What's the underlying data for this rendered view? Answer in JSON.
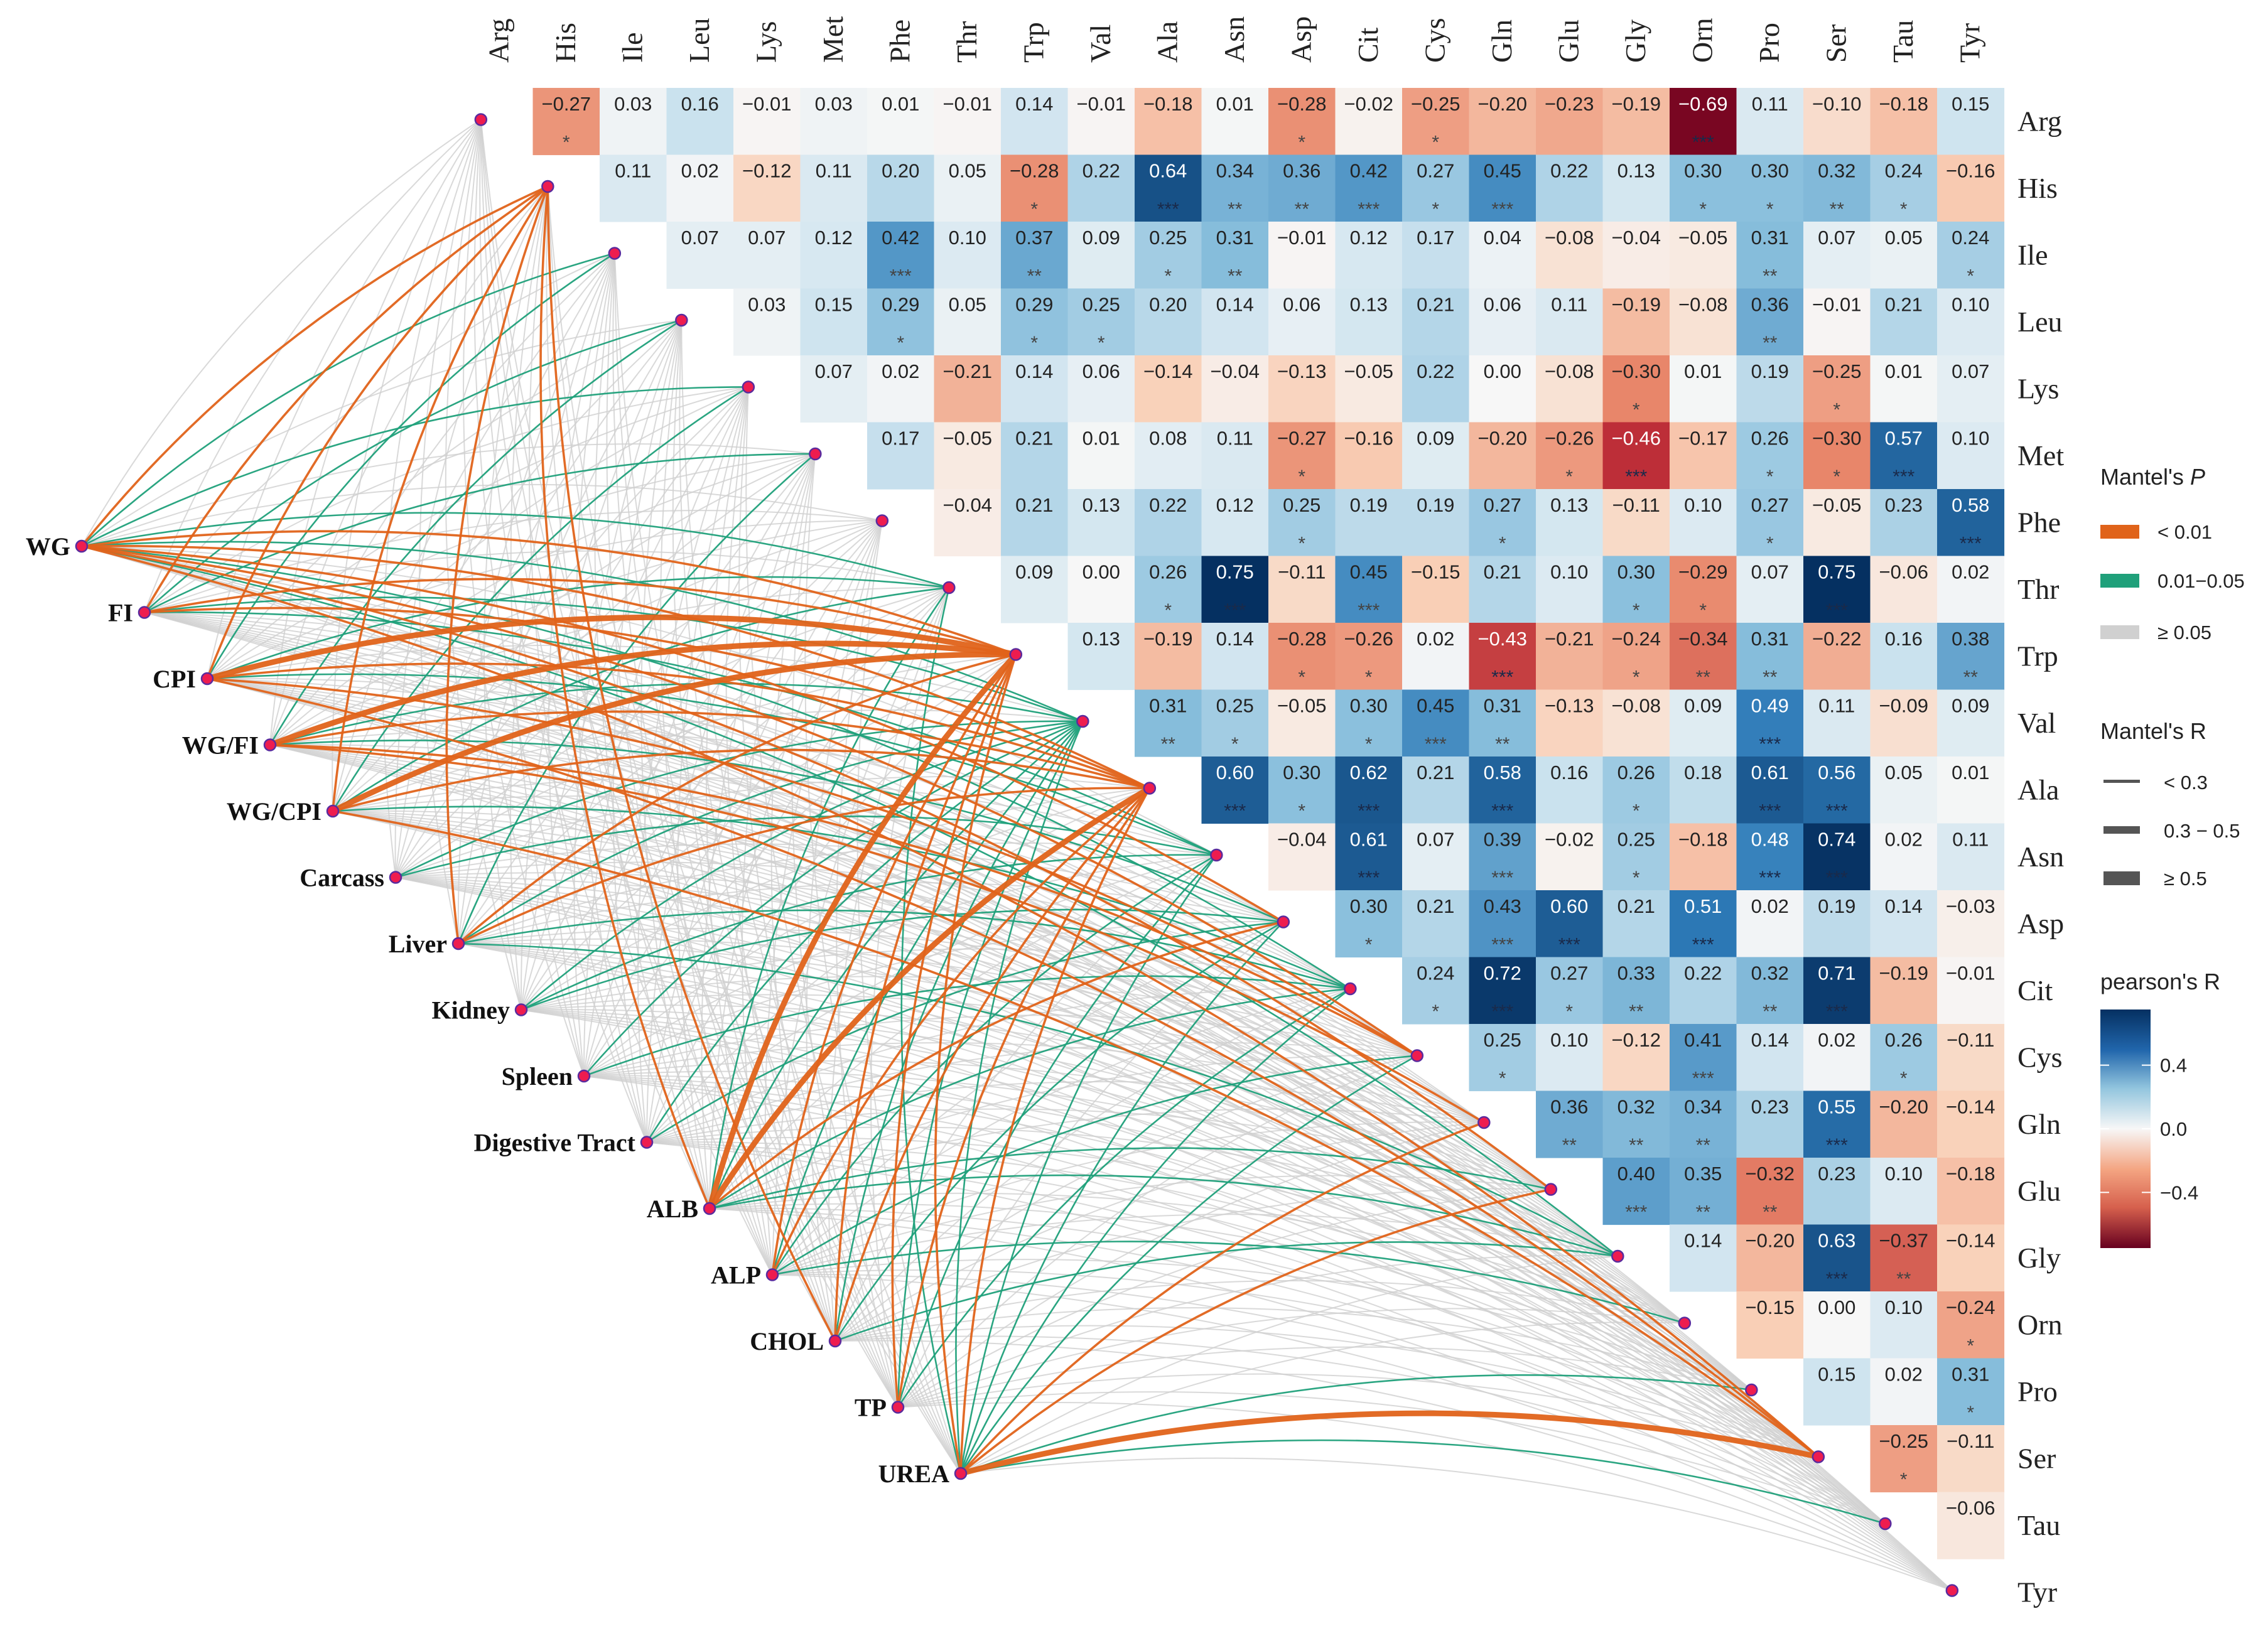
{
  "chart_data": {
    "type": "heatmap",
    "title": "",
    "aminos": [
      "Arg",
      "His",
      "Ile",
      "Leu",
      "Lys",
      "Met",
      "Phe",
      "Thr",
      "Trp",
      "Val",
      "Ala",
      "Asn",
      "Asp",
      "Cit",
      "Cys",
      "Gln",
      "Glu",
      "Gly",
      "Orn",
      "Pro",
      "Ser",
      "Tau",
      "Tyr"
    ],
    "corr_rows": [
      [
        "−0.27",
        "0.03",
        "0.16",
        "−0.01",
        "0.03",
        "0.01",
        "−0.01",
        "0.14",
        "−0.01",
        "−0.18",
        "0.01",
        "−0.28",
        "−0.02",
        "−0.25",
        "−0.20",
        "−0.23",
        "−0.19",
        "−0.69",
        "0.11",
        "−0.10",
        "−0.18",
        "0.15"
      ],
      [
        "0.11",
        "0.02",
        "−0.12",
        "0.11",
        "0.20",
        "0.05",
        "−0.28",
        "0.22",
        "0.64",
        "0.34",
        "0.36",
        "0.42",
        "0.27",
        "0.45",
        "0.22",
        "0.13",
        "0.30",
        "0.30",
        "0.32",
        "0.24",
        "−0.16"
      ],
      [
        "0.07",
        "0.07",
        "0.12",
        "0.42",
        "0.10",
        "0.37",
        "0.09",
        "0.25",
        "0.31",
        "−0.01",
        "0.12",
        "0.17",
        "0.04",
        "−0.08",
        "−0.04",
        "−0.05",
        "0.31",
        "0.07",
        "0.05",
        "0.24"
      ],
      [
        "0.03",
        "0.15",
        "0.29",
        "0.05",
        "0.29",
        "0.25",
        "0.20",
        "0.14",
        "0.06",
        "0.13",
        "0.21",
        "0.06",
        "0.11",
        "−0.19",
        "−0.08",
        "0.36",
        "−0.01",
        "0.21",
        "0.10"
      ],
      [
        "0.07",
        "0.02",
        "−0.21",
        "0.14",
        "0.06",
        "−0.14",
        "−0.04",
        "−0.13",
        "−0.05",
        "0.22",
        "0.00",
        "−0.08",
        "−0.30",
        "0.01",
        "0.19",
        "−0.25",
        "0.01",
        "0.07"
      ],
      [
        "0.17",
        "−0.05",
        "0.21",
        "0.01",
        "0.08",
        "0.11",
        "−0.27",
        "−0.16",
        "0.09",
        "−0.20",
        "−0.26",
        "−0.46",
        "−0.17",
        "0.26",
        "−0.30",
        "0.57",
        "0.10"
      ],
      [
        "−0.04",
        "0.21",
        "0.13",
        "0.22",
        "0.12",
        "0.25",
        "0.19",
        "0.19",
        "0.27",
        "0.13",
        "−0.11",
        "0.10",
        "0.27",
        "−0.05",
        "0.23",
        "0.58"
      ],
      [
        "0.09",
        "0.00",
        "0.26",
        "0.75",
        "−0.11",
        "0.45",
        "−0.15",
        "0.21",
        "0.10",
        "0.30",
        "−0.29",
        "0.07",
        "0.75",
        "−0.06",
        "0.02"
      ],
      [
        "0.13",
        "−0.19",
        "0.14",
        "−0.28",
        "−0.26",
        "0.02",
        "−0.43",
        "−0.21",
        "−0.24",
        "−0.34",
        "0.31",
        "−0.22",
        "0.16",
        "0.38"
      ],
      [
        "0.31",
        "0.25",
        "−0.05",
        "0.30",
        "0.45",
        "0.31",
        "−0.13",
        "−0.08",
        "0.09",
        "0.49",
        "0.11",
        "−0.09",
        "0.09"
      ],
      [
        "0.60",
        "0.30",
        "0.62",
        "0.21",
        "0.58",
        "0.16",
        "0.26",
        "0.18",
        "0.61",
        "0.56",
        "0.05",
        "0.01"
      ],
      [
        "−0.04",
        "0.61",
        "0.07",
        "0.39",
        "−0.02",
        "0.25",
        "−0.18",
        "0.48",
        "0.74",
        "0.02",
        "0.11"
      ],
      [
        "0.30",
        "0.21",
        "0.43",
        "0.60",
        "0.21",
        "0.51",
        "0.02",
        "0.19",
        "0.14",
        "−0.03"
      ],
      [
        "0.24",
        "0.72",
        "0.27",
        "0.33",
        "0.22",
        "0.32",
        "0.71",
        "−0.19",
        "−0.01"
      ],
      [
        "0.25",
        "0.10",
        "−0.12",
        "0.41",
        "0.14",
        "0.02",
        "0.26",
        "−0.11"
      ],
      [
        "0.36",
        "0.32",
        "0.34",
        "0.23",
        "0.55",
        "−0.20",
        "−0.14"
      ],
      [
        "0.40",
        "0.35",
        "−0.32",
        "0.23",
        "0.10",
        "−0.18"
      ],
      [
        "0.14",
        "−0.20",
        "0.63",
        "−0.37",
        "−0.14"
      ],
      [
        "−0.15",
        "0.00",
        "0.10",
        "−0.24"
      ],
      [
        "0.15",
        "0.02",
        "0.31"
      ],
      [
        "−0.25",
        "−0.11"
      ],
      [
        "−0.06"
      ]
    ],
    "sig_rows": [
      [
        "*",
        "",
        "",
        "",
        "",
        "",
        "",
        "",
        "",
        "",
        "",
        "*",
        "",
        "*",
        "",
        "",
        "",
        "***",
        "",
        "",
        "",
        ""
      ],
      [
        "",
        "",
        "",
        "",
        "",
        "",
        "*",
        "",
        "***",
        "**",
        "**",
        "***",
        "*",
        "***",
        "",
        "",
        "*",
        "*",
        "**",
        "*",
        ""
      ],
      [
        "",
        "",
        "",
        "***",
        "",
        "**",
        "",
        "*",
        "**",
        "",
        "",
        "",
        "",
        "",
        "",
        "",
        "**",
        "",
        "",
        "*"
      ],
      [
        "",
        "",
        "*",
        "",
        "*",
        "*",
        "",
        "",
        "",
        "",
        "",
        "",
        "",
        "",
        "",
        "**",
        "",
        "",
        ""
      ],
      [
        "",
        "",
        "",
        "",
        "",
        "",
        "",
        "",
        "",
        "",
        "",
        "",
        "*",
        "",
        "",
        "*",
        "",
        ""
      ],
      [
        "",
        "",
        "",
        "",
        "",
        "",
        "*",
        "",
        "",
        "",
        "*",
        "***",
        "",
        "*",
        "*",
        "***",
        ""
      ],
      [
        "",
        "",
        "",
        "",
        "",
        "*",
        "",
        "",
        "*",
        "",
        "",
        "",
        "*",
        "",
        "",
        "***"
      ],
      [
        "",
        "",
        "*",
        "***",
        "",
        "***",
        "",
        "",
        "",
        "*",
        "*",
        "",
        "***",
        "",
        ""
      ],
      [
        "",
        "",
        "",
        "*",
        "*",
        "",
        "***",
        "",
        "*",
        "**",
        "**",
        "",
        "",
        "**"
      ],
      [
        "**",
        "*",
        "",
        "*",
        "***",
        "**",
        "",
        "",
        "",
        "***",
        "",
        "",
        ""
      ],
      [
        "***",
        "*",
        "***",
        "",
        "***",
        "",
        "*",
        "",
        "***",
        "***",
        "",
        ""
      ],
      [
        "",
        "***",
        "",
        "***",
        "",
        "*",
        "",
        "***",
        "***",
        "",
        ""
      ],
      [
        "*",
        "",
        "***",
        "***",
        "",
        "***",
        "",
        "",
        "",
        ""
      ],
      [
        "*",
        "***",
        "*",
        "**",
        "",
        "**",
        "***",
        "",
        ""
      ],
      [
        "*",
        "",
        "",
        "***",
        "",
        "",
        "*",
        ""
      ],
      [
        "**",
        "**",
        "**",
        "",
        "***",
        "",
        ""
      ],
      [
        "***",
        "**",
        "**",
        "",
        "",
        ""
      ],
      [
        "",
        "",
        "***",
        "**",
        ""
      ],
      [
        "",
        "",
        "",
        "*"
      ],
      [
        "",
        "",
        "*"
      ],
      [
        "*",
        ""
      ],
      [
        ""
      ]
    ],
    "nodes": [
      "WG",
      "FI",
      "CPI",
      "WG/FI",
      "WG/CPI",
      "Carcass",
      "Liver",
      "Kidney",
      "Spleen",
      "Digestive Tract",
      "ALB",
      "ALP",
      "CHOL",
      "TP",
      "UREA"
    ],
    "links_orange": [
      [
        "WG",
        "His"
      ],
      [
        "WG",
        "Trp"
      ],
      [
        "WG",
        "Asp"
      ],
      [
        "WG",
        "Cys"
      ],
      [
        "WG",
        "Glu"
      ],
      [
        "WG",
        "Ala"
      ],
      [
        "WG",
        "Ser"
      ],
      [
        "FI",
        "His"
      ],
      [
        "FI",
        "Trp"
      ],
      [
        "FI",
        "Ala"
      ],
      [
        "CPI",
        "His"
      ],
      [
        "CPI",
        "Trp"
      ],
      [
        "CPI",
        "Ala"
      ],
      [
        "CPI",
        "Cys"
      ],
      [
        "CPI",
        "Ser"
      ],
      [
        "WG/FI",
        "Trp"
      ],
      [
        "WG/FI",
        "Ala"
      ],
      [
        "WG/FI",
        "Cys"
      ],
      [
        "WG/FI",
        "Gln"
      ],
      [
        "WG/CPI",
        "Trp"
      ],
      [
        "WG/CPI",
        "Ala"
      ],
      [
        "WG/CPI",
        "Ser"
      ],
      [
        "WG/CPI",
        "His"
      ],
      [
        "Liver",
        "His"
      ],
      [
        "Liver",
        "Trp"
      ],
      [
        "Liver",
        "Ala"
      ],
      [
        "ALB",
        "Trp"
      ],
      [
        "ALB",
        "His"
      ],
      [
        "ALB",
        "Ala"
      ],
      [
        "ALB",
        "Asp"
      ],
      [
        "ALP",
        "Trp"
      ],
      [
        "ALP",
        "Ala"
      ],
      [
        "CHOL",
        "Trp"
      ],
      [
        "CHOL",
        "Ala"
      ],
      [
        "CHOL",
        "His"
      ],
      [
        "TP",
        "Ala"
      ],
      [
        "TP",
        "Trp"
      ],
      [
        "UREA",
        "Trp"
      ],
      [
        "UREA",
        "Ala"
      ],
      [
        "UREA",
        "Ser"
      ],
      [
        "UREA",
        "Gln"
      ],
      [
        "UREA",
        "Glu"
      ]
    ],
    "links_green": [
      [
        "WG",
        "Ile"
      ],
      [
        "WG",
        "Lys"
      ],
      [
        "WG",
        "Thr"
      ],
      [
        "WG",
        "Val"
      ],
      [
        "WG",
        "Gly"
      ],
      [
        "WG",
        "Cit"
      ],
      [
        "FI",
        "Leu"
      ],
      [
        "FI",
        "Met"
      ],
      [
        "FI",
        "Val"
      ],
      [
        "FI",
        "Asn"
      ],
      [
        "CPI",
        "Ile"
      ],
      [
        "CPI",
        "Thr"
      ],
      [
        "CPI",
        "Asn"
      ],
      [
        "WG/FI",
        "Leu"
      ],
      [
        "WG/FI",
        "Val"
      ],
      [
        "WG/FI",
        "Asp"
      ],
      [
        "WG/CPI",
        "Lys"
      ],
      [
        "WG/CPI",
        "Thr"
      ],
      [
        "WG/CPI",
        "Cit"
      ],
      [
        "Carcass",
        "Val"
      ],
      [
        "Carcass",
        "Asn"
      ],
      [
        "Liver",
        "Met"
      ],
      [
        "Liver",
        "Val"
      ],
      [
        "Liver",
        "Cit"
      ],
      [
        "Liver",
        "Gly"
      ],
      [
        "Kidney",
        "Val"
      ],
      [
        "Kidney",
        "Asn"
      ],
      [
        "Kidney",
        "Asp"
      ],
      [
        "Spleen",
        "Val"
      ],
      [
        "Spleen",
        "Cit"
      ],
      [
        "Digestive Tract",
        "Val"
      ],
      [
        "Digestive Tract",
        "Asp"
      ],
      [
        "ALB",
        "Thr"
      ],
      [
        "ALB",
        "Val"
      ],
      [
        "ALB",
        "Cit"
      ],
      [
        "ALB",
        "Gly"
      ],
      [
        "ALB",
        "Glu"
      ],
      [
        "ALP",
        "Val"
      ],
      [
        "ALP",
        "Asn"
      ],
      [
        "ALP",
        "Cys"
      ],
      [
        "ALP",
        "Orn"
      ],
      [
        "CHOL",
        "Val"
      ],
      [
        "CHOL",
        "Asp"
      ],
      [
        "CHOL",
        "Gly"
      ],
      [
        "TP",
        "Val"
      ],
      [
        "TP",
        "Asn"
      ],
      [
        "TP",
        "Cit"
      ],
      [
        "UREA",
        "Val"
      ],
      [
        "UREA",
        "Thr"
      ],
      [
        "UREA",
        "Asn"
      ],
      [
        "UREA",
        "Asp"
      ],
      [
        "UREA",
        "Cit"
      ],
      [
        "UREA",
        "Cys"
      ],
      [
        "UREA",
        "Pro"
      ],
      [
        "UREA",
        "Tau"
      ]
    ],
    "links_thick": [
      [
        "WG/CPI",
        "Trp"
      ],
      [
        "WG/FI",
        "Trp"
      ],
      [
        "CPI",
        "Trp"
      ],
      [
        "ALB",
        "Trp"
      ],
      [
        "ALB",
        "Ala"
      ],
      [
        "UREA",
        "Ser"
      ]
    ]
  },
  "legend": {
    "mantel_p_title": "Mantel's ",
    "mantel_p_title_italic": "P",
    "p_items": [
      "< 0.01",
      "0.01−0.05",
      "≥ 0.05"
    ],
    "p_colors": [
      "#e0631a",
      "#1fa07a",
      "#d0d0d0"
    ],
    "mantel_r_title": "Mantel's R",
    "r_items": [
      "< 0.3",
      "0.3 − 0.5",
      "≥ 0.5"
    ],
    "pearson_title": "pearson's R",
    "pearson_ticks": [
      "0.4",
      "0.0",
      "−0.4"
    ],
    "pearson_tick_values": [
      0.4,
      0.0,
      -0.4
    ],
    "node_color": "#ee1c4f"
  }
}
